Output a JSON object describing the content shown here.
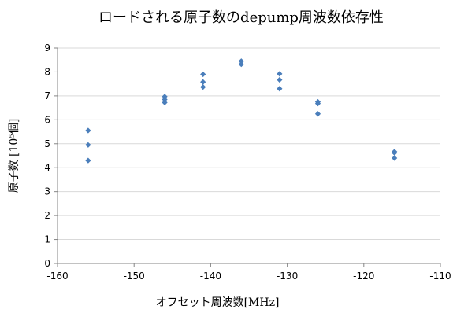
{
  "chart_data": {
    "type": "scatter",
    "title": "ロードされる原子数のdepump周波数依存性",
    "xlabel": "オフセット周波数[MHz]",
    "ylabel": "原子数 [10⁵個]",
    "xlim": [
      -160,
      -110
    ],
    "ylim": [
      0,
      9
    ],
    "x_ticks": [
      -160,
      -150,
      -140,
      -130,
      -120,
      -110
    ],
    "y_ticks": [
      0,
      1,
      2,
      3,
      4,
      5,
      6,
      7,
      8,
      9
    ],
    "grid": true,
    "marker_color": "#4a7ebb",
    "marker": "diamond",
    "series": [
      {
        "points": [
          {
            "x": -156,
            "y": 5.55
          },
          {
            "x": -156,
            "y": 4.95
          },
          {
            "x": -156,
            "y": 4.3
          },
          {
            "x": -146,
            "y": 6.97
          },
          {
            "x": -146,
            "y": 6.85
          },
          {
            "x": -146,
            "y": 6.72
          },
          {
            "x": -141,
            "y": 7.9
          },
          {
            "x": -141,
            "y": 7.58
          },
          {
            "x": -141,
            "y": 7.37
          },
          {
            "x": -136,
            "y": 8.45
          },
          {
            "x": -136,
            "y": 8.32
          },
          {
            "x": -131,
            "y": 7.92
          },
          {
            "x": -131,
            "y": 7.67
          },
          {
            "x": -131,
            "y": 7.3
          },
          {
            "x": -126,
            "y": 6.75
          },
          {
            "x": -126,
            "y": 6.68
          },
          {
            "x": -126,
            "y": 6.25
          },
          {
            "x": -116,
            "y": 4.67
          },
          {
            "x": -116,
            "y": 4.62
          },
          {
            "x": -116,
            "y": 4.4
          }
        ]
      }
    ]
  }
}
